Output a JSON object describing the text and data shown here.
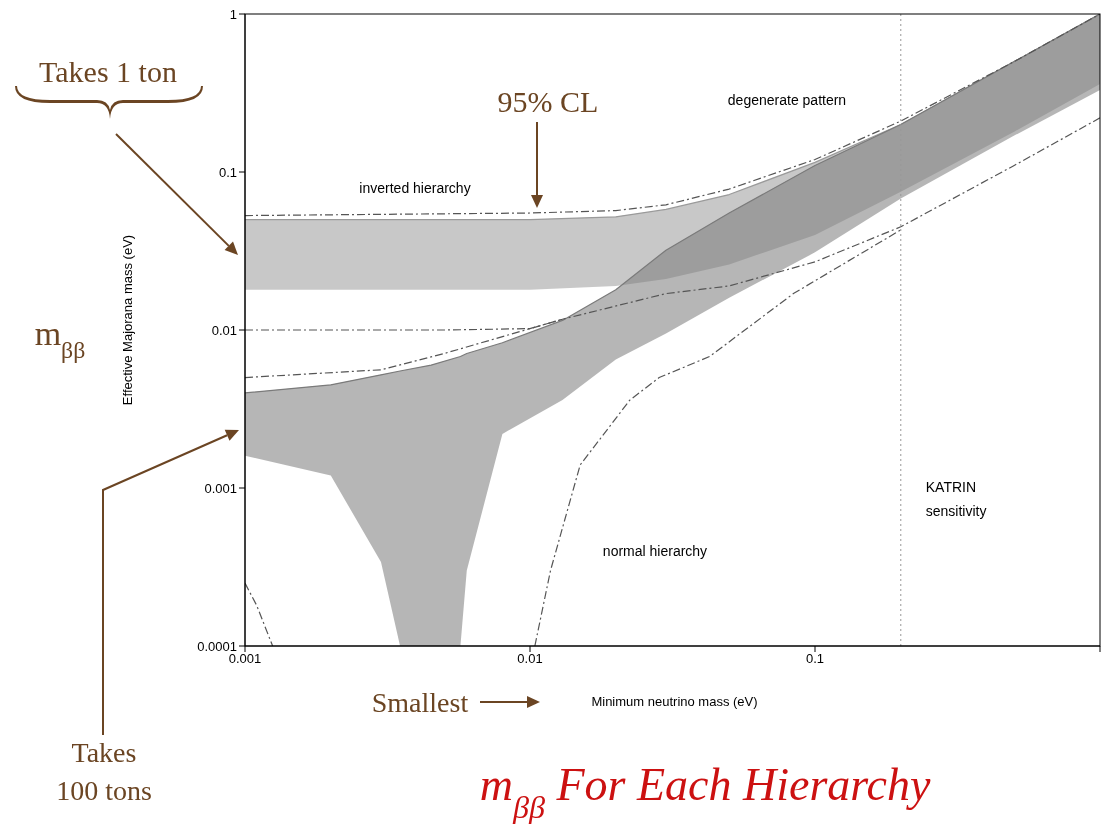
{
  "chart_data": {
    "type": "line",
    "title": "m$_{ββ}$ For Each Hierarchy",
    "xlabel": "Minimum neutrino mass (eV)",
    "ylabel": "Effective Majorana mass (eV)",
    "log": "xy",
    "xlim": [
      0.001,
      1
    ],
    "ylim": [
      0.0001,
      1
    ],
    "xticks": [
      0.001,
      0.01,
      0.1,
      {
        "value": 1,
        "label": null
      }
    ],
    "yticks": [
      0.0001,
      0.001,
      0.01,
      0.1,
      1
    ],
    "grid": false,
    "legend": false,
    "marker": "none",
    "series": [
      {
        "color": "#9a9a9a",
        "x": [
          0.001,
          0.003,
          0.01,
          0.02,
          0.03,
          0.05,
          0.1,
          0.2,
          0.5,
          1
        ],
        "values": [
          0.05,
          0.05,
          0.05,
          0.052,
          0.058,
          0.072,
          0.115,
          0.2,
          0.5,
          1
        ],
        "upper": [
          0.05,
          0.05,
          0.05,
          0.052,
          0.058,
          0.072,
          0.115,
          0.2,
          0.5,
          1
        ],
        "lower": [
          0.018,
          0.018,
          0.018,
          0.019,
          0.021,
          0.026,
          0.04,
          0.075,
          0.18,
          0.36
        ]
      },
      {
        "color": "#7a7a7a",
        "x": [
          0.001,
          0.002,
          0.003,
          0.0035,
          0.0045,
          0.0057,
          0.006,
          0.008,
          0.013,
          0.02,
          0.03,
          0.05,
          0.1,
          0.2,
          0.5,
          1
        ],
        "values": [
          0.004,
          0.0045,
          0.0052,
          0.0055,
          0.006,
          0.0068,
          0.0071,
          0.0083,
          0.0115,
          0.018,
          0.032,
          0.055,
          0.11,
          0.2,
          0.5,
          1
        ],
        "upper": [
          0.004,
          0.0045,
          0.0052,
          0.0055,
          0.006,
          0.0068,
          0.0071,
          0.0083,
          0.0115,
          0.018,
          0.032,
          0.055,
          0.11,
          0.2,
          0.5,
          1
        ],
        "lower": [
          0.0016,
          0.0012,
          0.00034,
          0.0001,
          0.0001,
          0.0001,
          0.0003,
          0.0022,
          0.0036,
          0.0065,
          0.0095,
          0.016,
          0.031,
          0.068,
          0.17,
          0.33
        ]
      },
      {
        "type": "line",
        "color": "#555555",
        "line_style": "dashed",
        "x": [
          0.001,
          0.01,
          0.02,
          0.03,
          0.05,
          0.1,
          0.2,
          0.5,
          1
        ],
        "values": [
          0.053,
          0.055,
          0.057,
          0.062,
          0.078,
          0.12,
          0.21,
          0.5,
          1
        ]
      },
      {
        "type": "line",
        "color": "#555555",
        "line_style": "dashed",
        "x": [
          0.001,
          0.005,
          0.01,
          0.013
        ],
        "values": [
          0.01,
          0.01,
          0.0102,
          0.0117
        ]
      },
      {
        "type": "line",
        "color": "#555555",
        "line_style": "dashed",
        "x": [
          0.001,
          0.003,
          0.005,
          0.013,
          0.03,
          0.05,
          0.1,
          0.2,
          0.5,
          1
        ],
        "values": [
          0.005,
          0.0056,
          0.0071,
          0.0117,
          0.017,
          0.019,
          0.027,
          0.045,
          0.11,
          0.22
        ]
      },
      {
        "type": "line",
        "color": "#555555",
        "line_style": "dashed",
        "x": [
          0.0104,
          0.0118,
          0.015,
          0.0224,
          0.0284,
          0.0427,
          0.084,
          0.2
        ],
        "values": [
          0.0001,
          0.0003,
          0.0014,
          0.0036,
          0.005,
          0.0068,
          0.017,
          0.043
        ]
      },
      {
        "type": "line",
        "color": "#555555",
        "line_style": "dashed",
        "x": [
          0.001,
          0.0011,
          0.00125
        ],
        "values": [
          0.00025,
          0.00018,
          0.0001
        ]
      }
    ],
    "ref_lines": [
      {
        "axis": "x",
        "value": 0.2,
        "label": "KATRIN sensitivity",
        "color": "#999999",
        "line_style": "dotted"
      }
    ],
    "annotations": [
      "Takes 1 ton",
      "95% CL",
      "inverted hierarchy",
      "degenerate pattern",
      "normal hierarchy",
      "m$_{ββ}$",
      "Takes 100 tons",
      "Smallest"
    ]
  }
}
